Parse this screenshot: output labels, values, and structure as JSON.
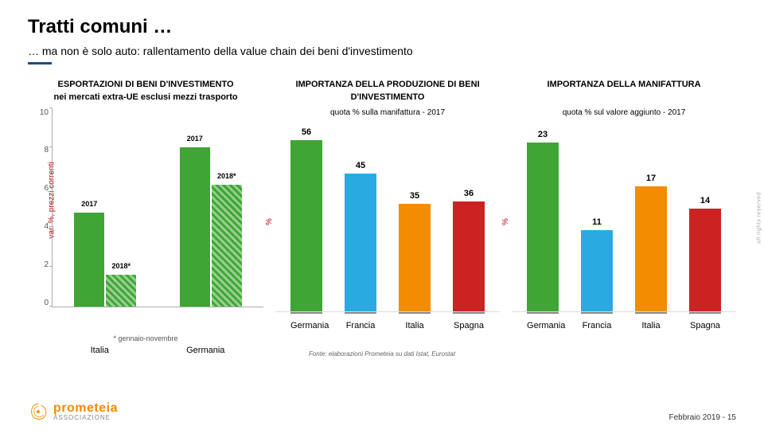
{
  "title": "Tratti comuni …",
  "subtitle": "… ma non è solo auto: rallentamento della value chain dei beni d'investimento",
  "chart1": {
    "type": "bar",
    "title": "ESPORTAZIONI DI BENI D'INVESTIMENTO",
    "subtitle": "nei mercati extra-UE esclusi mezzi trasporto",
    "ylabel": "var. %, prezzi correnti",
    "ymin": 0,
    "ymax": 10,
    "ystep": 2,
    "yticks": [
      "0",
      "2",
      "4",
      "6",
      "8",
      "10"
    ],
    "categories": [
      "Italia",
      "Germania"
    ],
    "series": [
      {
        "name": "2017",
        "color": "#3fa535",
        "values": [
          4.7,
          8.0
        ]
      },
      {
        "name": "2018*",
        "color": "#3fa535",
        "hatched": true,
        "values": [
          1.6,
          6.1
        ]
      }
    ],
    "footnote": "* gennaio-novembre",
    "label_fontsize": 9
  },
  "chart2": {
    "type": "bar",
    "title": "IMPORTANZA DELLA PRODUZIONE DI BENI",
    "subtitle": "D'INVESTIMENTO",
    "note": "quota % sulla manifattura - 2017",
    "ylabel": "%",
    "ymax": 60,
    "categories": [
      "Germania",
      "Francia",
      "Italia",
      "Spagna"
    ],
    "values": [
      56,
      45,
      35,
      36
    ],
    "colors": [
      "#3fa535",
      "#29abe2",
      "#f28c00",
      "#cc2222"
    ],
    "val_fontsize": 11
  },
  "chart3": {
    "type": "bar",
    "title": "IMPORTANZA DELLA MANIFATTURA",
    "note": "quota % sul valore aggiunto  - 2017",
    "ylabel": "%",
    "ymax": 25,
    "categories": [
      "Germania",
      "Francia",
      "Italia",
      "Spagna"
    ],
    "values": [
      23,
      11,
      17,
      14
    ],
    "colors": [
      "#3fa535",
      "#29abe2",
      "#f28c00",
      "#cc2222"
    ],
    "val_fontsize": 11
  },
  "source": "Fonte: elaborazioni Prometeia su dati Istat, Eurostat",
  "footer_date": "Febbraio 2019 -",
  "page_no": "15",
  "logo_main": "prometeia",
  "logo_sub": "ASSOCIAZIONE",
  "copyright": "all rights reserved",
  "divider_color": "#1e4a7a",
  "accent_orange": "#f28c00"
}
